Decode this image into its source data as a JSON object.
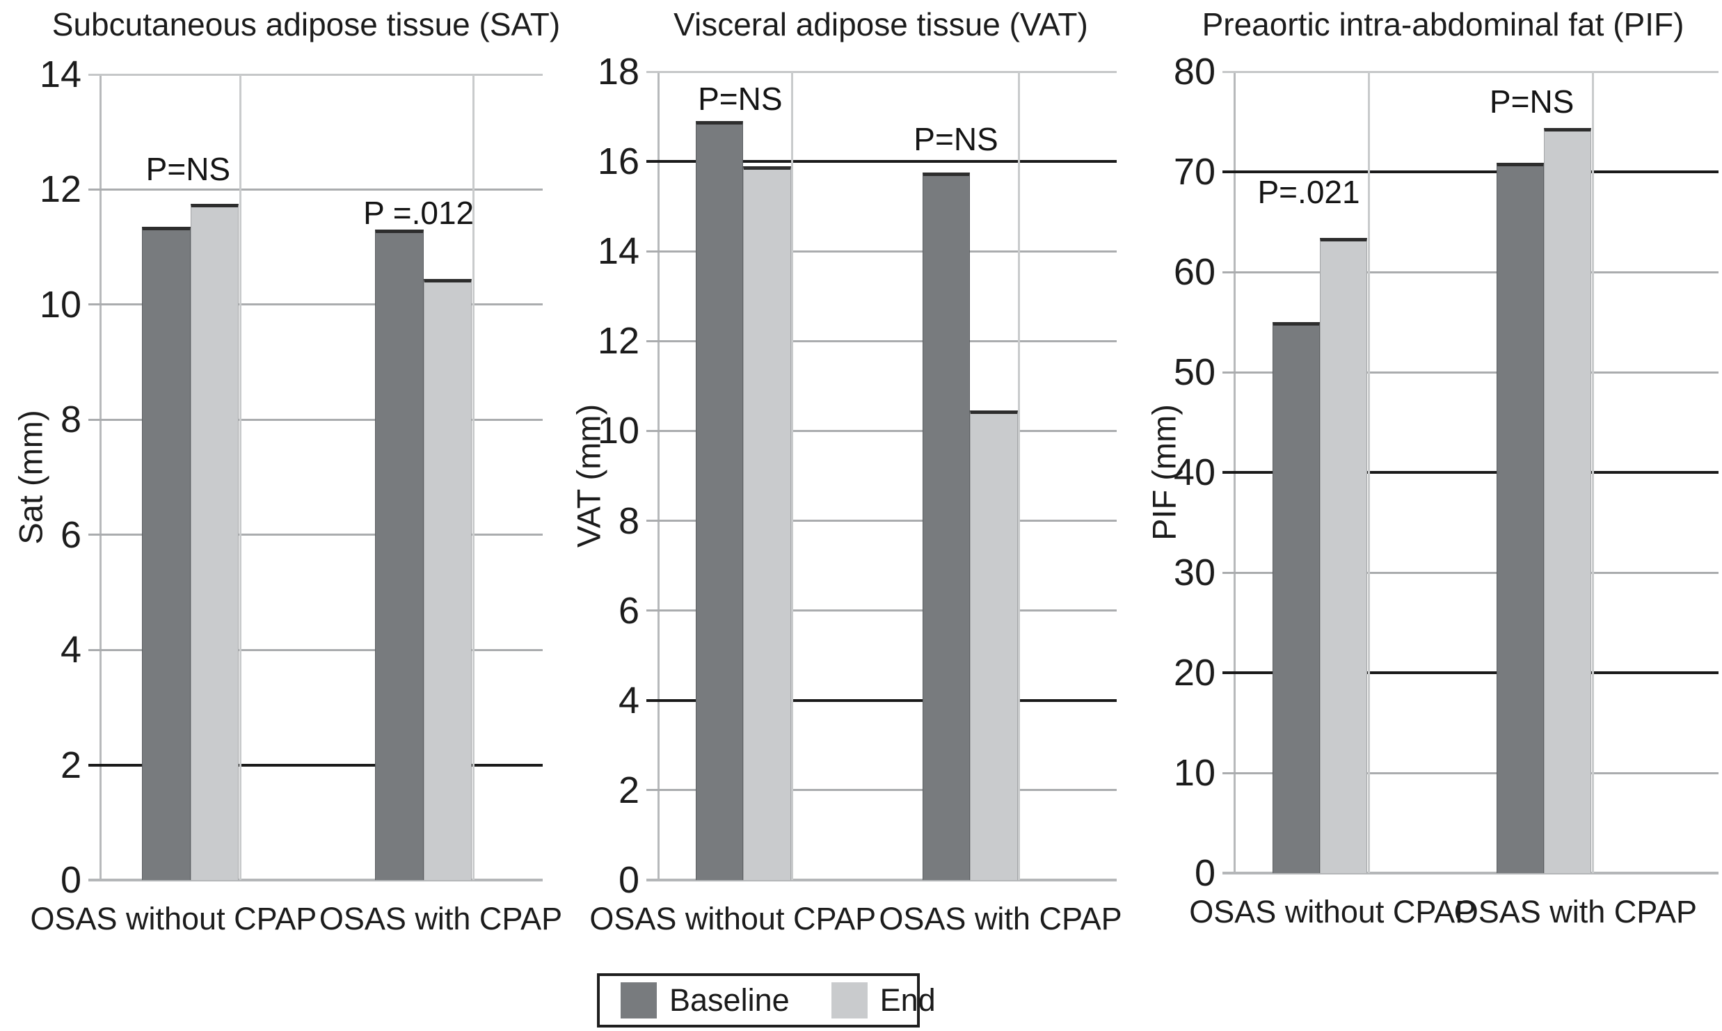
{
  "figure_background": "#ffffff",
  "colors": {
    "baseline_bar": "#787b7e",
    "end_bar": "#c9cbcd",
    "bar_top_edge": "#2d2d2d",
    "gridline": "#aaacae",
    "gridline_dark": "#1a1a1a",
    "gridline_top": "#c5c7c8",
    "axis_bottom": "#b4b6b8",
    "text": "#1a1a1a"
  },
  "legend": {
    "items": [
      {
        "label": "Baseline",
        "color": "#787b7e"
      },
      {
        "label": "End",
        "color": "#c9cbcd"
      }
    ]
  },
  "chart_data": [
    {
      "type": "bar",
      "title": "Subcutaneous adipose tissue (SAT)",
      "ylabel": "Sat (mm)",
      "xlabel": "",
      "ylim": [
        0,
        14
      ],
      "yticks": [
        0,
        2,
        4,
        6,
        8,
        10,
        12,
        14
      ],
      "dark_gridlines": [
        2
      ],
      "grid": true,
      "legend_position": "bottom",
      "categories": [
        "OSAS without CPAP",
        "OSAS with CPAP"
      ],
      "series": [
        {
          "name": "Baseline",
          "values": [
            11.35,
            11.3
          ]
        },
        {
          "name": "End",
          "values": [
            11.75,
            10.45
          ]
        }
      ],
      "annotations": [
        {
          "text": "P=NS",
          "group": 0,
          "y": 12.35
        },
        {
          "text": "P =.012",
          "group": 1,
          "y": 11.6
        }
      ]
    },
    {
      "type": "bar",
      "title": "Visceral adipose tissue (VAT)",
      "ylabel": "VAT (mm)",
      "xlabel": "",
      "ylim": [
        0,
        18
      ],
      "yticks": [
        0,
        2,
        4,
        6,
        8,
        10,
        12,
        14,
        16,
        18
      ],
      "dark_gridlines": [
        16,
        4
      ],
      "grid": true,
      "legend_position": "bottom",
      "categories": [
        "OSAS without CPAP",
        "OSAS with CPAP"
      ],
      "series": [
        {
          "name": "Baseline",
          "values": [
            16.9,
            15.75
          ]
        },
        {
          "name": "End",
          "values": [
            15.9,
            10.45
          ]
        }
      ],
      "annotations": [
        {
          "text": "P=NS",
          "group": 0,
          "y": 17.4
        },
        {
          "text": "P=NS",
          "group": 1,
          "y": 16.5
        }
      ]
    },
    {
      "type": "bar",
      "title": "Preaortic intra-abdominal fat (PIF)",
      "ylabel": "PIF (mm)",
      "xlabel": "",
      "ylim": [
        0,
        80
      ],
      "yticks": [
        0,
        10,
        20,
        30,
        40,
        50,
        60,
        70,
        80
      ],
      "dark_gridlines": [
        70,
        40,
        20
      ],
      "grid": true,
      "legend_position": "bottom",
      "categories": [
        "OSAS without CPAP",
        "OSAS with CPAP"
      ],
      "series": [
        {
          "name": "Baseline",
          "values": [
            55,
            70.9
          ]
        },
        {
          "name": "End",
          "values": [
            63.4,
            74.4
          ]
        }
      ],
      "annotations": [
        {
          "text": "P=.021",
          "group": 0,
          "y": 68
        },
        {
          "text": "P=NS",
          "group": 1,
          "y": 77
        }
      ]
    }
  ]
}
